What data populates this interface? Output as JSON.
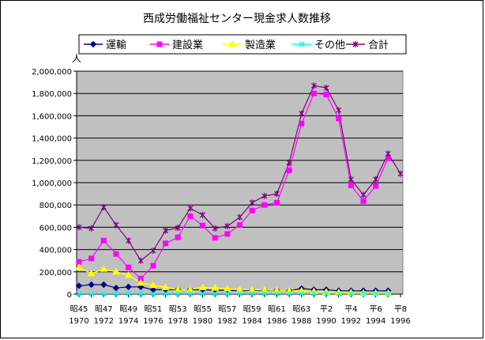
{
  "chart_data": {
    "type": "line",
    "title": "西成労働福祉センター現金求人数推移",
    "ylabel": "人",
    "ylim": [
      0,
      2000000
    ],
    "yticks": [
      "0",
      "200,000",
      "400,000",
      "600,000",
      "800,000",
      "1,000,000",
      "1,200,000",
      "1,400,000",
      "1,600,000",
      "1,800,000",
      "2,000,000"
    ],
    "x_era": [
      "昭45",
      "昭47",
      "昭49",
      "昭51",
      "昭53",
      "昭55",
      "昭57",
      "昭59",
      "昭61",
      "昭63",
      "平2",
      "平4",
      "平6",
      "平8"
    ],
    "x_year": [
      "1970",
      "1972",
      "1974",
      "1976",
      "1978",
      "1980",
      "1982",
      "1984",
      "1986",
      "1988",
      "1990",
      "1992",
      "1994",
      "1996"
    ],
    "x": [
      1970,
      1971,
      1972,
      1973,
      1974,
      1975,
      1976,
      1977,
      1978,
      1979,
      1980,
      1981,
      1982,
      1983,
      1984,
      1985,
      1986,
      1987,
      1988,
      1989,
      1990,
      1991,
      1992,
      1993,
      1994,
      1995,
      1996
    ],
    "legend_position": "top-right",
    "grid": "horizontal",
    "series": [
      {
        "name": "運輸",
        "color": "#000080",
        "marker": "diamond",
        "values": [
          75000,
          85000,
          85000,
          55000,
          65000,
          65000,
          40000,
          40000,
          40000,
          40000,
          40000,
          35000,
          35000,
          30000,
          35000,
          35000,
          35000,
          30000,
          50000,
          40000,
          40000,
          30000,
          30000,
          30000,
          30000,
          30000,
          null
        ]
      },
      {
        "name": "建設業",
        "color": "#FF00FF",
        "marker": "square",
        "values": [
          290000,
          320000,
          480000,
          360000,
          240000,
          140000,
          255000,
          455000,
          510000,
          700000,
          615000,
          505000,
          540000,
          620000,
          750000,
          800000,
          820000,
          1110000,
          1530000,
          1800000,
          1790000,
          1575000,
          975000,
          835000,
          970000,
          1220000,
          null
        ]
      },
      {
        "name": "製造業",
        "color": "#FFFF00",
        "marker": "triangle",
        "values": [
          240000,
          185000,
          225000,
          200000,
          170000,
          100000,
          80000,
          60000,
          40000,
          40000,
          60000,
          55000,
          50000,
          40000,
          40000,
          40000,
          35000,
          30000,
          30000,
          25000,
          20000,
          15000,
          15000,
          10000,
          10000,
          10000,
          null
        ]
      },
      {
        "name": "その他",
        "color": "#00FFFF",
        "marker": "x",
        "values": [
          5000,
          5000,
          5000,
          5000,
          5000,
          5000,
          5000,
          5000,
          5000,
          5000,
          5000,
          5000,
          5000,
          5000,
          5000,
          5000,
          5000,
          5000,
          5000,
          5000,
          5000,
          5000,
          5000,
          5000,
          5000,
          5000,
          null
        ]
      },
      {
        "name": "合計",
        "color": "#800080",
        "marker": "star",
        "values": [
          600000,
          590000,
          780000,
          620000,
          480000,
          300000,
          390000,
          570000,
          595000,
          770000,
          710000,
          590000,
          610000,
          690000,
          820000,
          880000,
          900000,
          1180000,
          1620000,
          1870000,
          1850000,
          1650000,
          1030000,
          890000,
          1030000,
          1260000,
          1080000
        ]
      }
    ]
  }
}
